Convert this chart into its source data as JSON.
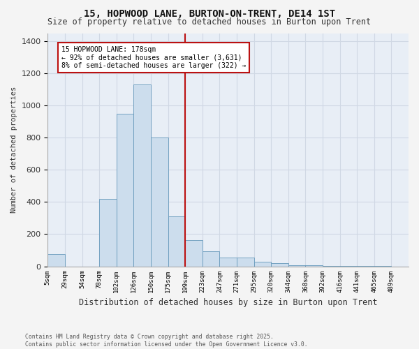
{
  "title": "15, HOPWOOD LANE, BURTON-ON-TRENT, DE14 1ST",
  "subtitle": "Size of property relative to detached houses in Burton upon Trent",
  "xlabel": "Distribution of detached houses by size in Burton upon Trent",
  "ylabel": "Number of detached properties",
  "bin_labels": [
    "5sqm",
    "29sqm",
    "54sqm",
    "78sqm",
    "102sqm",
    "126sqm",
    "150sqm",
    "175sqm",
    "199sqm",
    "223sqm",
    "247sqm",
    "271sqm",
    "295sqm",
    "320sqm",
    "344sqm",
    "368sqm",
    "392sqm",
    "416sqm",
    "441sqm",
    "465sqm",
    "489sqm"
  ],
  "bar_heights": [
    75,
    0,
    0,
    420,
    950,
    1130,
    800,
    310,
    165,
    95,
    55,
    55,
    30,
    20,
    8,
    5,
    3,
    3,
    2,
    2
  ],
  "bar_color": "#ccdded",
  "bar_edge_color": "#6699bb",
  "background_color": "#e8eef6",
  "grid_color": "#d0d8e4",
  "vline_idx": 7,
  "vline_color": "#bb1111",
  "annotation_text_line1": "15 HOPWOOD LANE: 178sqm",
  "annotation_text_line2": "← 92% of detached houses are smaller (3,631)",
  "annotation_text_line3": "8% of semi-detached houses are larger (322) →",
  "annotation_box_edgecolor": "#bb1111",
  "annotation_box_facecolor": "#ffffff",
  "ylim": [
    0,
    1450
  ],
  "yticks": [
    0,
    200,
    400,
    600,
    800,
    1000,
    1200,
    1400
  ],
  "footnote_line1": "Contains HM Land Registry data © Crown copyright and database right 2025.",
  "footnote_line2": "Contains public sector information licensed under the Open Government Licence v3.0.",
  "fig_facecolor": "#f4f4f4",
  "title_fontsize": 10,
  "subtitle_fontsize": 8.5
}
